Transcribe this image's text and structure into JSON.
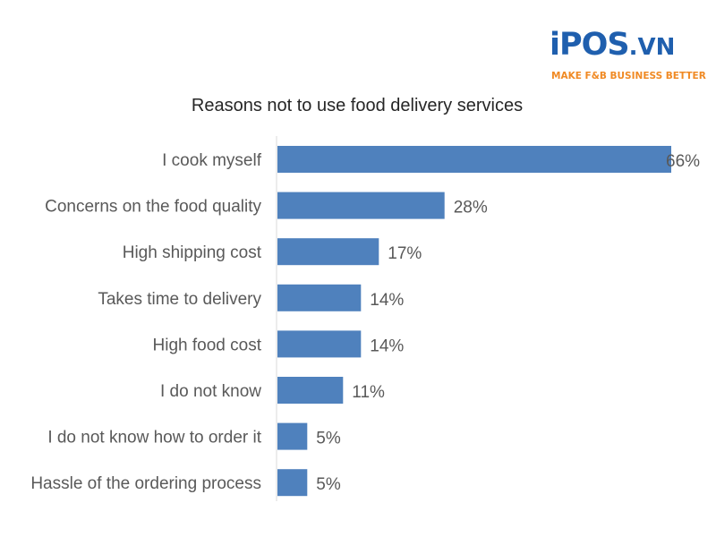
{
  "logo": {
    "mark": "iPOS",
    "suffix": ".VN",
    "tagline": "MAKE F&B BUSINESS BETTER",
    "brand_color": "#1f5fae",
    "accent_color": "#f08a24"
  },
  "chart_data": {
    "type": "bar",
    "orientation": "horizontal",
    "title": "Reasons not to use food delivery services",
    "categories": [
      "I cook myself",
      "Concerns on the food quality",
      "High shipping cost",
      "Takes time to delivery",
      "High food cost",
      "I do not know",
      "I do not know how to order it",
      "Hassle of the ordering process"
    ],
    "values": [
      66,
      28,
      17,
      14,
      14,
      11,
      5,
      5
    ],
    "value_labels": [
      "66%",
      "28%",
      "17%",
      "14%",
      "14%",
      "11%",
      "5%",
      "5%"
    ],
    "xlim": [
      0,
      66
    ],
    "grid": false,
    "legend": "none",
    "bar_color": "#4f81bd",
    "axis_color": "#d9d9d9"
  }
}
